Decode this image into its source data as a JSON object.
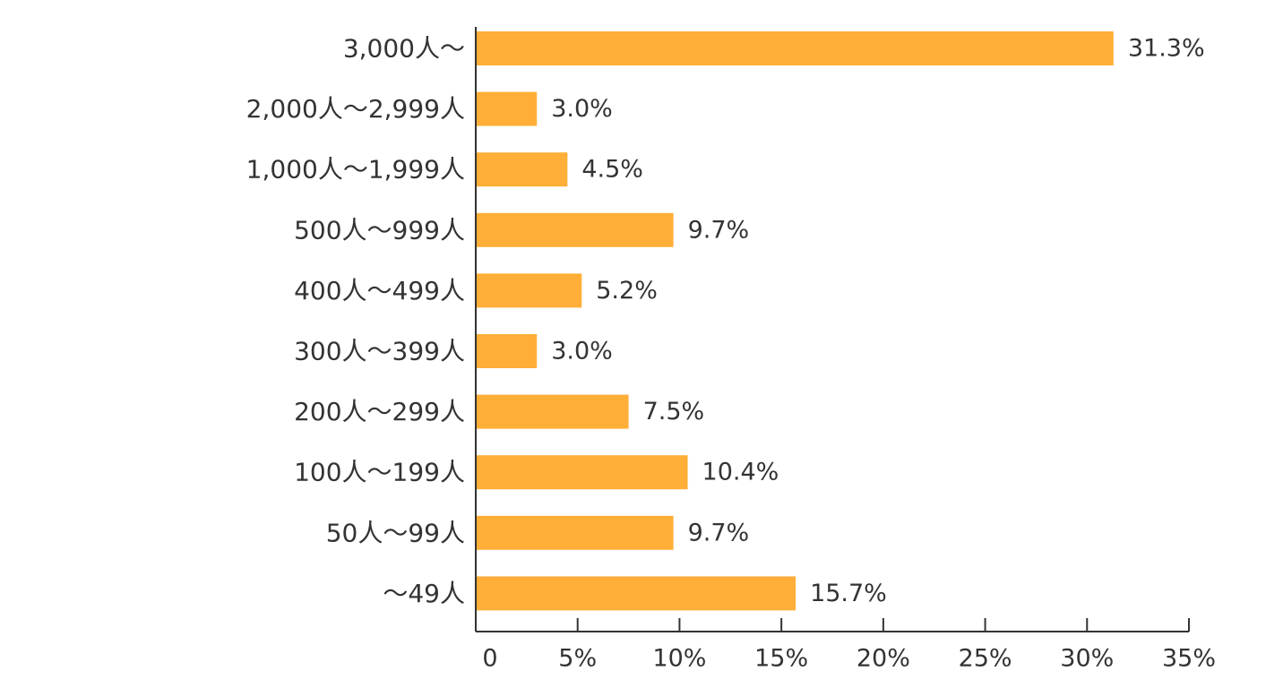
{
  "chart_data": {
    "type": "bar",
    "orientation": "horizontal",
    "categories": [
      "3,000人～",
      "2,000人～2,999人",
      "1,000人～1,999人",
      "500人～999人",
      "400人～499人",
      "300人～399人",
      "200人～299人",
      "100人～199人",
      "50人～99人",
      "～49人"
    ],
    "values": [
      31.3,
      3.0,
      4.5,
      9.7,
      5.2,
      3.0,
      7.5,
      10.4,
      9.7,
      15.7
    ],
    "value_labels": [
      "31.3%",
      "3.0%",
      "4.5%",
      "9.7%",
      "5.2%",
      "3.0%",
      "7.5%",
      "10.4%",
      "9.7%",
      "15.7%"
    ],
    "xlim": [
      0,
      35
    ],
    "x_ticks": [
      0,
      5,
      10,
      15,
      20,
      25,
      30,
      35
    ],
    "x_tick_labels": [
      "0",
      "5%",
      "10%",
      "15%",
      "20%",
      "25%",
      "30%",
      "35%"
    ],
    "bar_color": "#FFAE37",
    "axis_color": "#333333",
    "grid": false,
    "title": "",
    "xlabel": "",
    "ylabel": ""
  }
}
